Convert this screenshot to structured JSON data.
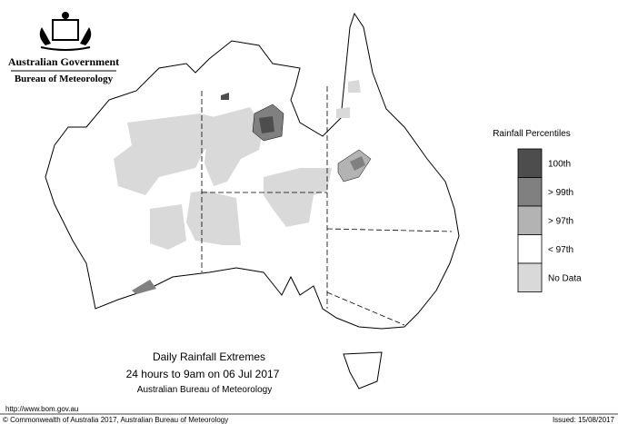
{
  "header": {
    "title": "Australian Government",
    "subtitle": "Bureau of Meteorology"
  },
  "legend": {
    "title": "Rainfall Percentiles",
    "items": [
      {
        "label": "100th",
        "color": "#4d4d4d"
      },
      {
        "label": "> 99th",
        "color": "#808080"
      },
      {
        "label": "> 97th",
        "color": "#b3b3b3"
      },
      {
        "label": "< 97th",
        "color": "#ffffff"
      },
      {
        "label": "No Data",
        "color": "#d9d9d9"
      }
    ]
  },
  "caption": {
    "title": "Daily Rainfall Extremes",
    "period": "24 hours to 9am on 06 Jul 2017",
    "source": "Australian Bureau of Meteorology"
  },
  "footer": {
    "url": "http://www.bom.gov.au",
    "copyright": "© Commonwealth of Australia 2017, Australian Bureau of Meteorology",
    "issued": "Issued: 15/08/2017"
  }
}
